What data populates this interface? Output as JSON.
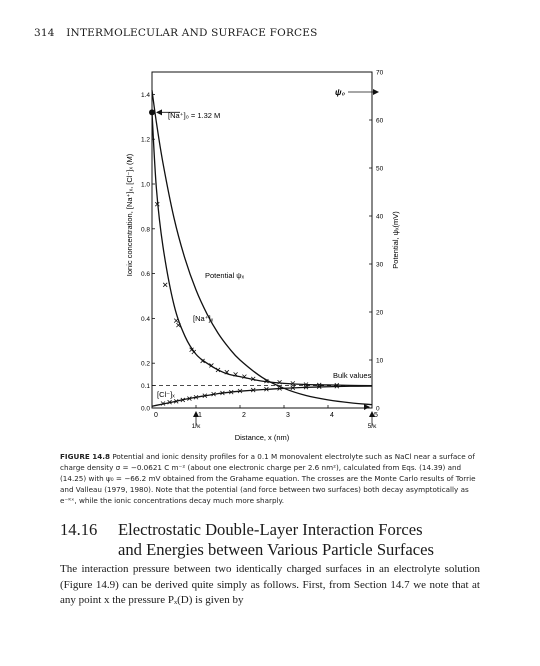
{
  "running_head": {
    "page_number": "314",
    "title": "INTERMOLECULAR AND SURFACE FORCES"
  },
  "caption": {
    "label": "FIGURE 14.8",
    "text": "Potential and ionic density profiles for a 0.1 M monovalent electrolyte such as NaCl near a surface of charge density σ = −0.0621 C m⁻² (about one electronic charge per 2.6 nm²), calculated from Eqs. (14.39) and (14.25) with ψ₀ = −66.2 mV obtained from the Grahame equation. The crosses are the Monte Carlo results of Torrie and Valleau (1979, 1980). Note that the potential (and force between two surfaces) both decay asymptotically as e⁻ᴷˣ, while the ionic concentrations decay much more sharply."
  },
  "section": {
    "number": "14.16",
    "title_line1": "Electrostatic Double-Layer Interaction Forces",
    "title_line2": "and Energies between Various Particle Surfaces"
  },
  "body_text": "The interaction pressure between two identically charged surfaces in an electrolyte solution (Figure 14.9) can be derived quite simply as follows. First, from Section 14.7 we note that at any point x the pressure Pₓ(D) is given by",
  "chart_data": {
    "type": "line",
    "xlabel": "Distance, x (nm)",
    "ylabel": "Ionic concentration, [Na⁺]ₓ, [Cl⁻]ₓ (M)",
    "y2label": "Potential, ψₓ(mV)",
    "xlim": [
      0,
      5
    ],
    "ylim": [
      0,
      1.5
    ],
    "y2lim": [
      0,
      70
    ],
    "x_ticks": [
      "0",
      "1",
      "2",
      "3",
      "4",
      "5"
    ],
    "y_ticks": [
      "0.0",
      "0.1",
      "0.2",
      "0.4",
      "0.6",
      "0.8",
      "1.0",
      "1.2",
      "1.4"
    ],
    "y_tick_values": [
      0,
      0.1,
      0.2,
      0.4,
      0.6,
      0.8,
      1.0,
      1.2,
      1.4
    ],
    "y2_ticks": [
      "0",
      "10",
      "20",
      "30",
      "40",
      "50",
      "60",
      "70"
    ],
    "y2_tick_values": [
      0,
      10,
      20,
      30,
      40,
      50,
      60,
      70
    ],
    "x_arrow_labels": [
      {
        "x": 1,
        "label": "1/κ"
      },
      {
        "x": 5,
        "label": "5/κ"
      }
    ],
    "annotations": {
      "na0": "[Na⁺]₀ = 1.32 M",
      "psi0": "ψ₀",
      "potential": "Potential ψₓ",
      "na": "[Na⁺]ₓ",
      "cl": "[Cl⁻]ₓ",
      "bulk": "Bulk values"
    },
    "bulk_value": 0.1,
    "series": [
      {
        "name": "Potential ψₓ",
        "axis": "right",
        "x": [
          0,
          0.1,
          0.25,
          0.5,
          0.75,
          1.0,
          1.25,
          1.5,
          1.75,
          2.0,
          2.5,
          3.0,
          3.5,
          4.0,
          4.5,
          5.0
        ],
        "values": [
          66.2,
          59.5,
          51.0,
          39.6,
          31.1,
          24.6,
          19.6,
          15.6,
          12.5,
          10.0,
          6.4,
          4.1,
          2.6,
          1.7,
          1.1,
          0.7
        ]
      },
      {
        "name": "[Na⁺]ₓ",
        "axis": "left",
        "x": [
          0,
          0.1,
          0.25,
          0.5,
          0.75,
          1.0,
          1.25,
          1.5,
          1.75,
          2.0,
          2.5,
          3.0,
          3.5,
          4.0,
          4.5,
          5.0
        ],
        "values": [
          1.32,
          0.98,
          0.72,
          0.46,
          0.32,
          0.24,
          0.2,
          0.17,
          0.15,
          0.14,
          0.12,
          0.11,
          0.105,
          0.103,
          0.101,
          0.1
        ]
      },
      {
        "name": "[Cl⁻]ₓ",
        "axis": "left",
        "x": [
          0,
          0.1,
          0.25,
          0.5,
          0.75,
          1.0,
          1.25,
          1.5,
          1.75,
          2.0,
          2.5,
          3.0,
          3.5,
          4.0,
          4.5,
          5.0
        ],
        "values": [
          0.008,
          0.012,
          0.018,
          0.028,
          0.039,
          0.048,
          0.056,
          0.064,
          0.07,
          0.075,
          0.082,
          0.088,
          0.092,
          0.095,
          0.097,
          0.098
        ]
      },
      {
        "name": "Monte Carlo [Na⁺]ₓ",
        "type": "scatter",
        "axis": "left",
        "x": [
          0.12,
          0.3,
          0.55,
          0.6,
          0.9,
          0.95,
          1.15,
          1.35,
          1.5,
          1.7,
          1.9,
          2.1,
          2.3,
          2.6,
          2.9,
          3.2,
          3.5,
          3.8,
          4.2
        ],
        "values": [
          0.91,
          0.55,
          0.39,
          0.37,
          0.26,
          0.25,
          0.21,
          0.19,
          0.17,
          0.16,
          0.15,
          0.14,
          0.13,
          0.12,
          0.115,
          0.11,
          0.105,
          0.103,
          0.102
        ]
      },
      {
        "name": "Monte Carlo [Cl⁻]ₓ",
        "type": "scatter",
        "axis": "left",
        "x": [
          0.25,
          0.4,
          0.55,
          0.7,
          0.85,
          1.0,
          1.2,
          1.4,
          1.6,
          1.8,
          2.0,
          2.3,
          2.6,
          2.9,
          3.2,
          3.5,
          3.8,
          4.2
        ],
        "values": [
          0.02,
          0.026,
          0.03,
          0.036,
          0.042,
          0.048,
          0.055,
          0.062,
          0.067,
          0.071,
          0.076,
          0.08,
          0.084,
          0.087,
          0.09,
          0.093,
          0.095,
          0.097
        ]
      }
    ]
  }
}
